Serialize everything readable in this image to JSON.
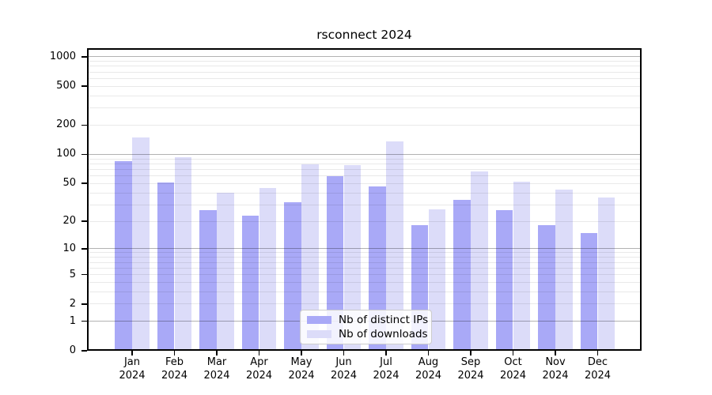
{
  "title": "rsconnect 2024",
  "chart_data": {
    "type": "bar",
    "title": "rsconnect 2024",
    "categories": [
      "Jan",
      "Feb",
      "Mar",
      "Apr",
      "May",
      "Jun",
      "Jul",
      "Aug",
      "Sep",
      "Oct",
      "Nov",
      "Dec"
    ],
    "x_year": "2024",
    "series": [
      {
        "name": "Nb of distinct IPs",
        "color": "#a9a9f7",
        "values": [
          85,
          51,
          26,
          23,
          32,
          59,
          47,
          18,
          34,
          26,
          18,
          15
        ]
      },
      {
        "name": "Nb of downloads",
        "color": "#dcdcf9",
        "values": [
          150,
          93,
          40,
          45,
          79,
          77,
          135,
          27,
          67,
          52,
          43,
          36
        ]
      }
    ],
    "y_scale": "log10(1+v)",
    "y_ticks": [
      0,
      1,
      2,
      5,
      10,
      20,
      50,
      100,
      200,
      500,
      1000
    ],
    "y_major_gridlines": [
      1,
      10,
      100,
      1000
    ],
    "ylim": [
      0,
      1225
    ],
    "grid": "on",
    "legend_position": "lower center inside plot"
  }
}
